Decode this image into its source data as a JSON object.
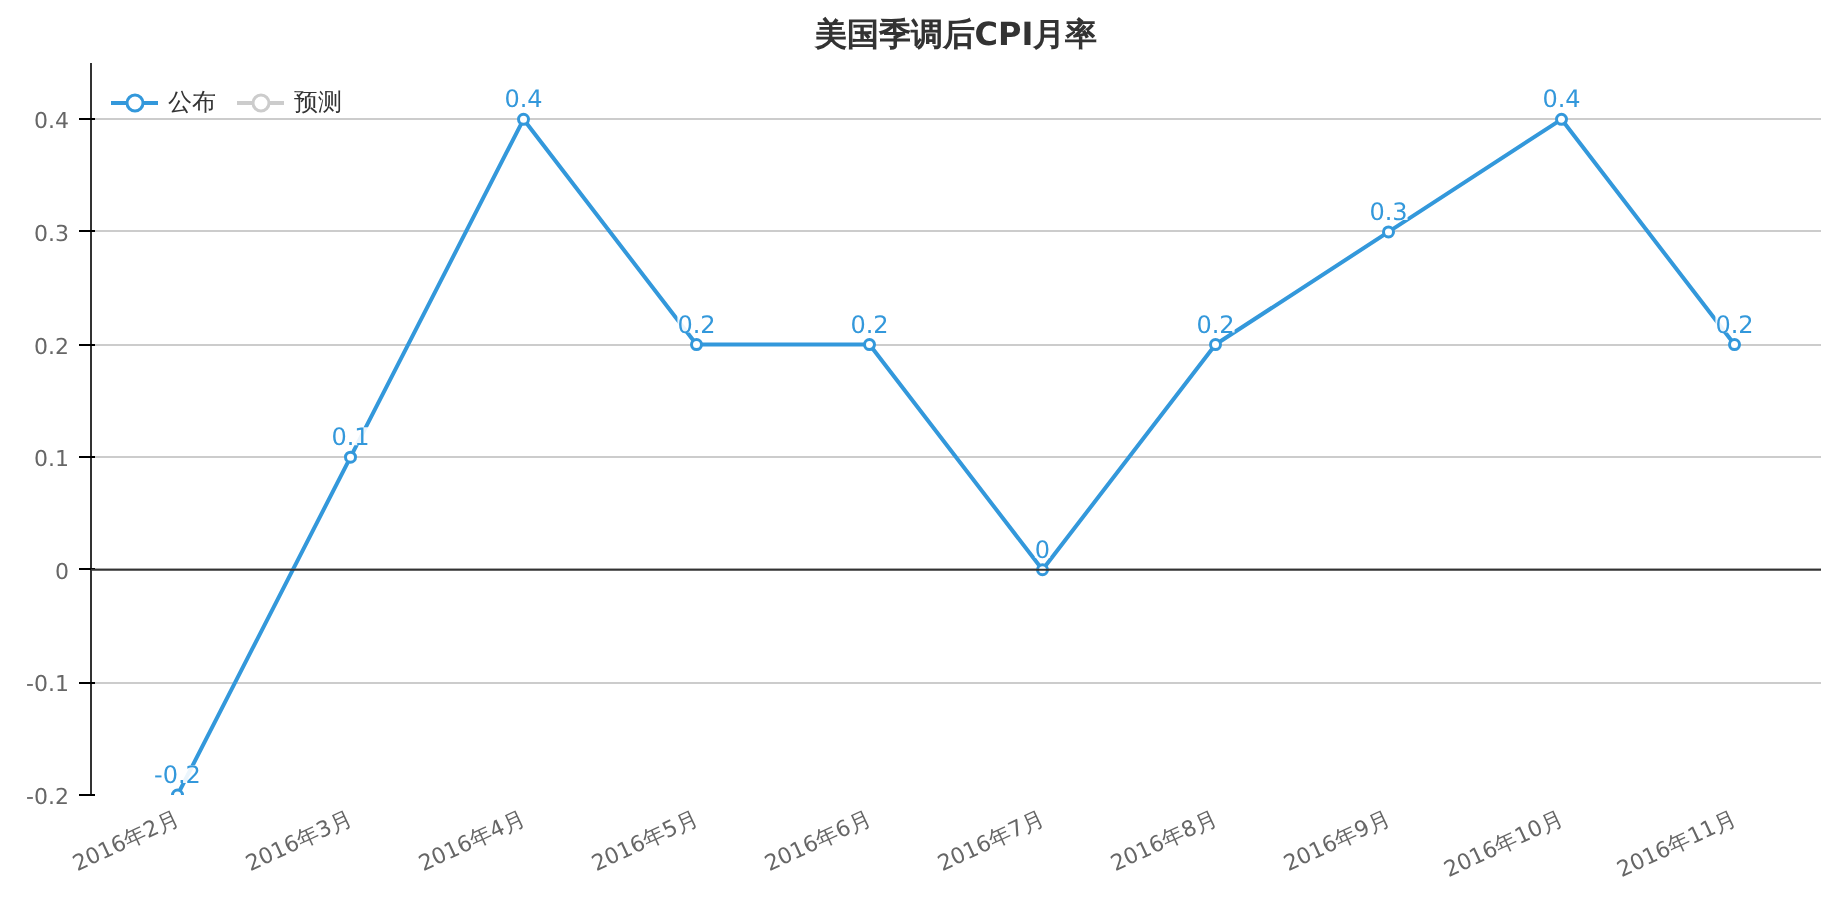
{
  "chart_data": {
    "type": "line",
    "title": "美国季调后CPI月率",
    "categories": [
      "2016年2月",
      "2016年3月",
      "2016年4月",
      "2016年5月",
      "2016年6月",
      "2016年7月",
      "2016年8月",
      "2016年9月",
      "2016年10月",
      "2016年11月"
    ],
    "series": [
      {
        "name": "公布",
        "color": "#3398db",
        "values": [
          -0.2,
          0.1,
          0.4,
          0.2,
          0.2,
          0,
          0.2,
          0.3,
          0.4,
          0.2
        ]
      },
      {
        "name": "预测",
        "color": "#cccccc",
        "values": [
          null,
          null,
          null,
          null,
          null,
          null,
          null,
          null,
          null,
          null
        ]
      }
    ],
    "ylim": [
      -0.2,
      0.45
    ],
    "yticks": [
      -0.2,
      -0.1,
      0,
      0.1,
      0.2,
      0.3,
      0.4
    ],
    "grid": "y",
    "legend": "top left",
    "marker": "circle",
    "data_labels": true
  }
}
